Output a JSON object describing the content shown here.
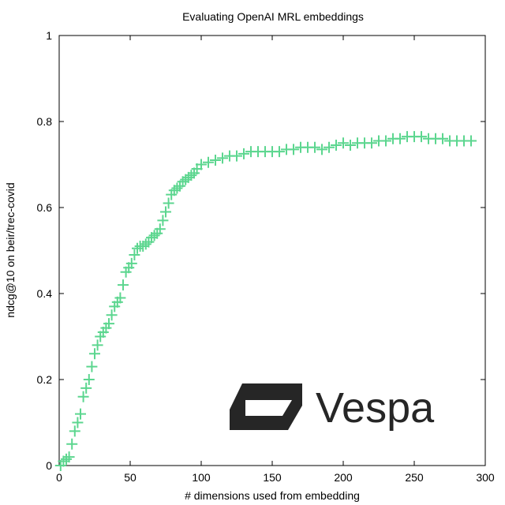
{
  "chart_data": {
    "type": "scatter",
    "title": "Evaluating OpenAI MRL embeddings",
    "xlabel": "# dimensions used from embedding",
    "ylabel": "ndcg@10 on beir/trec-covid",
    "xlim": [
      0,
      300
    ],
    "ylim": [
      0,
      1
    ],
    "xticks": [
      "0",
      "50",
      "100",
      "150",
      "200",
      "250",
      "300"
    ],
    "yticks": [
      "0",
      "0.2",
      "0.4",
      "0.6",
      "0.8",
      "1"
    ],
    "grid": false,
    "marker": "plus",
    "color": "#5cd68f",
    "series": [
      {
        "x": [
          1,
          3,
          5,
          7,
          9,
          11,
          13,
          15,
          17,
          19,
          21,
          23,
          25,
          27,
          29,
          31,
          33,
          35,
          37,
          39,
          41,
          43,
          45,
          47,
          49,
          51,
          53,
          55,
          57,
          59,
          61,
          63,
          65,
          67,
          69,
          71,
          73,
          75,
          77,
          79,
          81,
          83,
          85,
          87,
          89,
          91,
          93,
          95,
          97,
          100,
          105,
          110,
          115,
          120,
          125,
          130,
          135,
          140,
          145,
          150,
          155,
          160,
          165,
          170,
          175,
          180,
          185,
          190,
          195,
          200,
          205,
          210,
          215,
          220,
          225,
          230,
          235,
          240,
          245,
          250,
          255,
          260,
          265,
          270,
          275,
          280,
          285,
          290
        ],
        "y": [
          0.0,
          0.01,
          0.015,
          0.02,
          0.05,
          0.08,
          0.1,
          0.12,
          0.16,
          0.18,
          0.2,
          0.23,
          0.26,
          0.28,
          0.3,
          0.31,
          0.32,
          0.33,
          0.35,
          0.37,
          0.38,
          0.39,
          0.42,
          0.45,
          0.46,
          0.47,
          0.49,
          0.505,
          0.51,
          0.51,
          0.515,
          0.52,
          0.53,
          0.535,
          0.54,
          0.55,
          0.57,
          0.59,
          0.61,
          0.63,
          0.64,
          0.645,
          0.65,
          0.66,
          0.665,
          0.67,
          0.675,
          0.68,
          0.69,
          0.7,
          0.705,
          0.71,
          0.715,
          0.72,
          0.72,
          0.725,
          0.73,
          0.73,
          0.73,
          0.73,
          0.73,
          0.735,
          0.735,
          0.74,
          0.74,
          0.74,
          0.735,
          0.74,
          0.745,
          0.75,
          0.745,
          0.75,
          0.75,
          0.75,
          0.755,
          0.755,
          0.76,
          0.76,
          0.765,
          0.765,
          0.765,
          0.76,
          0.76,
          0.76,
          0.755,
          0.755,
          0.755,
          0.755
        ]
      }
    ]
  },
  "logo": {
    "text": "Vespa",
    "icon": "vespa-logo-icon",
    "color": "#262626"
  }
}
